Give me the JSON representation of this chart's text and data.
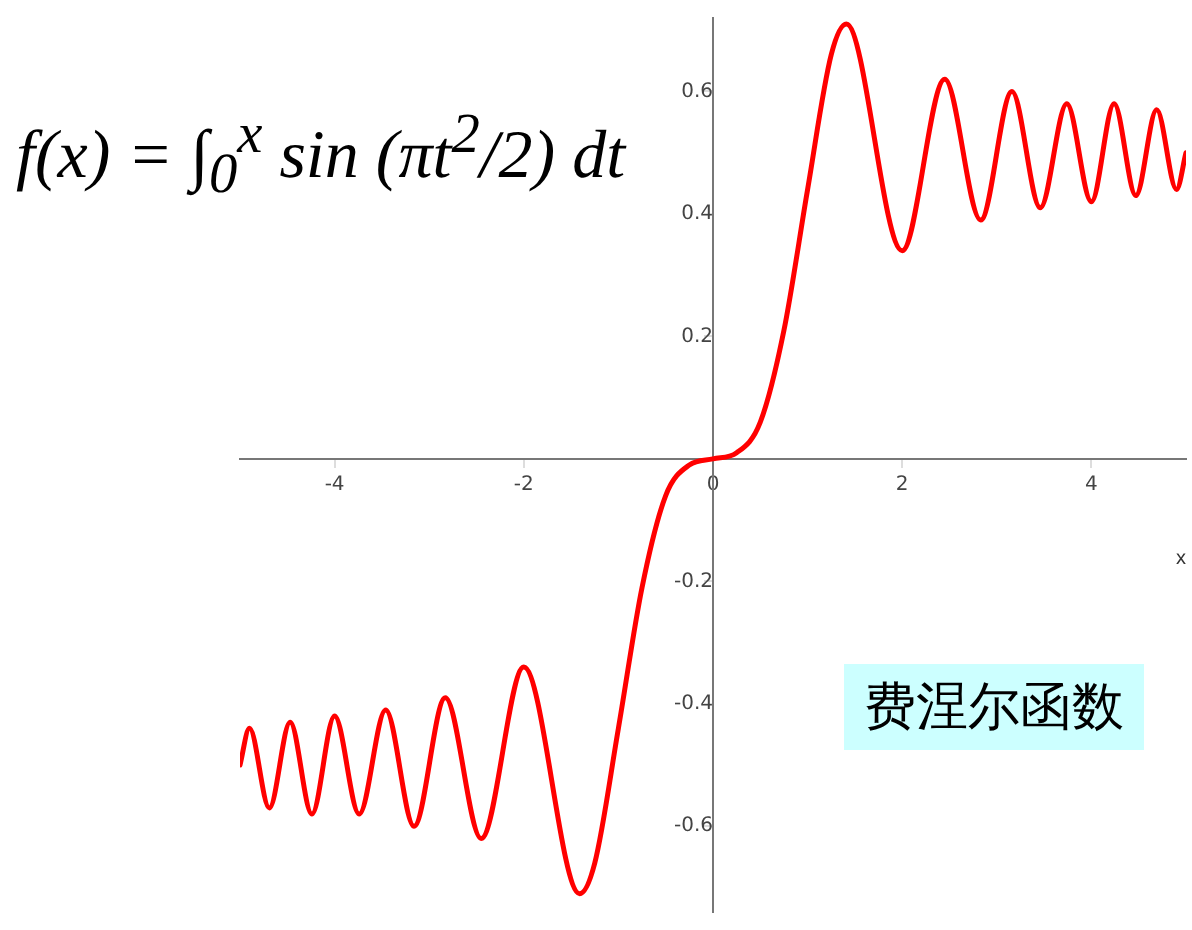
{
  "chart_data": {
    "type": "line",
    "xlabel": "x",
    "annotations": [
      "f(x) = ∫$_{0}$$^{x}$ sin (πt$^{2}$/2) dt",
      "费涅尔函数"
    ],
    "xlim": [
      -5,
      5
    ],
    "ylim": [
      -0.74,
      0.72
    ],
    "xticks": [
      -4,
      -2,
      0,
      2,
      4
    ],
    "yticks": [
      -0.6,
      -0.4,
      -0.2,
      0.2,
      0.4,
      0.6
    ],
    "grid": false,
    "legend": false,
    "marker": "none",
    "line_style": "solid",
    "series": [
      {
        "color": "#ff0000",
        "x": [
          -5,
          -4.9,
          -4.69,
          -4.47,
          -4.24,
          -4,
          -3.74,
          -3.46,
          -3.16,
          -2.83,
          -2.45,
          -2,
          -1.41,
          -1.25,
          -1,
          -0.75,
          -0.5,
          -0.25,
          0,
          0.25,
          0.5,
          0.75,
          1,
          1.25,
          1.41,
          2,
          2.45,
          2.83,
          3.16,
          3.46,
          3.74,
          4,
          4.24,
          4.47,
          4.69,
          4.9,
          5
        ],
        "values": [
          -0.5,
          -0.44,
          -0.57,
          -0.43,
          -0.58,
          -0.42,
          -0.58,
          -0.41,
          -0.6,
          -0.39,
          -0.62,
          -0.34,
          -0.71,
          -0.66,
          -0.44,
          -0.21,
          -0.06,
          -0.01,
          0,
          0.01,
          0.06,
          0.21,
          0.44,
          0.66,
          0.71,
          0.34,
          0.62,
          0.39,
          0.6,
          0.41,
          0.58,
          0.42,
          0.58,
          0.43,
          0.57,
          0.44,
          0.5
        ]
      }
    ]
  }
}
